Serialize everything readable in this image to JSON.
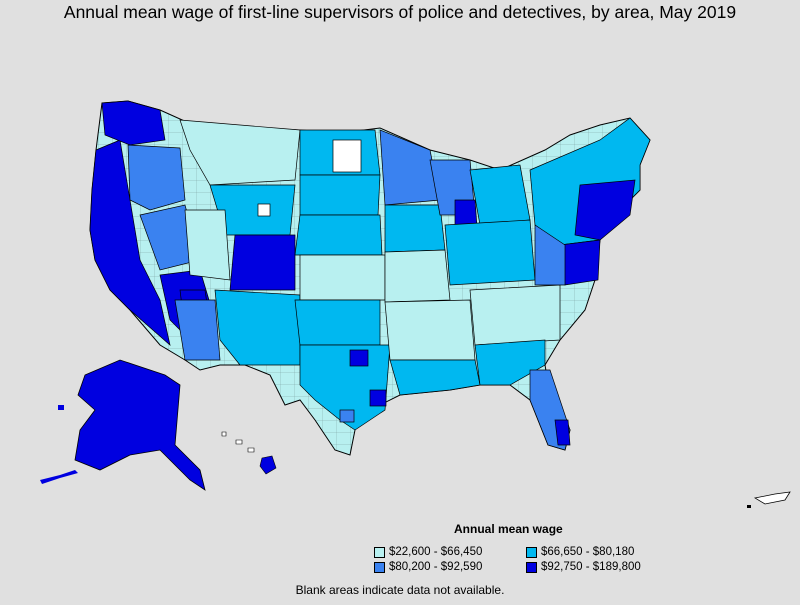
{
  "title": "Annual mean wage of first-line supervisors of police and detectives, by area, May 2019",
  "legend": {
    "title": "Annual mean wage",
    "items": [
      {
        "label": "$22,600 - $66,450",
        "color": "#b8f0f0"
      },
      {
        "label": "$66,650 - $80,180",
        "color": "#00b8f0"
      },
      {
        "label": "$80,200 - $92,590",
        "color": "#3a82f0"
      },
      {
        "label": "$92,750 - $189,800",
        "color": "#0000e0"
      }
    ]
  },
  "footnote": "Blank areas indicate data not available.",
  "colors": {
    "background": "#e0e0e0",
    "blank": "#ffffff",
    "border": "#000000"
  }
}
